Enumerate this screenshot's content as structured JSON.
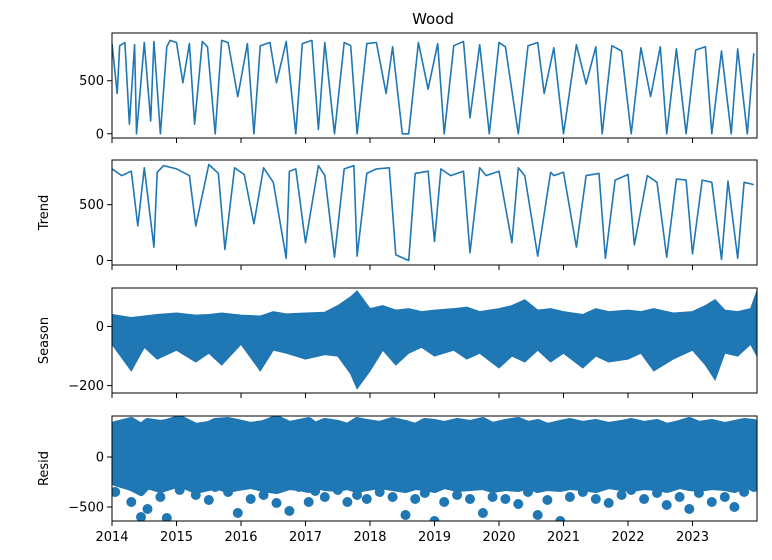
{
  "figure": {
    "title": "Wood",
    "series_color": "#1f77b4"
  },
  "chart_data": [
    {
      "type": "line",
      "title": "Wood",
      "ylabel": "",
      "xlim": [
        2014,
        2024
      ],
      "ylim": [
        -40,
        950
      ],
      "yticks": [
        0,
        500
      ],
      "grid": false,
      "series": [
        {
          "x": [
            2014.0,
            2014.08,
            2014.12,
            2014.2,
            2014.27,
            2014.35,
            2014.38,
            2014.5,
            2014.6,
            2014.65,
            2014.75,
            2014.85,
            2014.9,
            2015.0,
            2015.1,
            2015.2,
            2015.28,
            2015.4,
            2015.48,
            2015.6,
            2015.7,
            2015.8,
            2015.95,
            2016.1,
            2016.2,
            2016.3,
            2016.45,
            2016.55,
            2016.7,
            2016.85,
            2016.95,
            2017.1,
            2017.2,
            2017.3,
            2017.45,
            2017.6,
            2017.7,
            2017.8,
            2017.95,
            2018.1,
            2018.25,
            2018.35,
            2018.5,
            2018.6,
            2018.75,
            2018.9,
            2019.05,
            2019.15,
            2019.3,
            2019.45,
            2019.55,
            2019.7,
            2019.85,
            2020.0,
            2020.1,
            2020.3,
            2020.45,
            2020.6,
            2020.7,
            2020.85,
            2021.0,
            2021.2,
            2021.35,
            2021.5,
            2021.6,
            2021.75,
            2021.9,
            2022.05,
            2022.2,
            2022.35,
            2022.5,
            2022.6,
            2022.75,
            2022.9,
            2023.05,
            2023.2,
            2023.3,
            2023.45,
            2023.6,
            2023.7,
            2023.85,
            2023.95
          ],
          "y": [
            850,
            380,
            830,
            860,
            90,
            840,
            0,
            860,
            120,
            870,
            0,
            820,
            880,
            860,
            480,
            850,
            90,
            870,
            820,
            0,
            880,
            860,
            350,
            850,
            0,
            830,
            860,
            480,
            870,
            0,
            850,
            880,
            40,
            860,
            0,
            860,
            830,
            0,
            850,
            860,
            380,
            820,
            0,
            0,
            860,
            420,
            850,
            0,
            830,
            870,
            150,
            840,
            0,
            860,
            820,
            0,
            830,
            860,
            380,
            810,
            0,
            840,
            470,
            820,
            0,
            830,
            780,
            0,
            810,
            350,
            820,
            0,
            800,
            0,
            790,
            820,
            0,
            780,
            0,
            800,
            0,
            760
          ]
        }
      ]
    },
    {
      "type": "line",
      "title": "",
      "ylabel": "Trend",
      "xlim": [
        2014,
        2024
      ],
      "ylim": [
        -40,
        900
      ],
      "yticks": [
        0,
        500
      ],
      "grid": false,
      "series": [
        {
          "x": [
            2014.0,
            2014.15,
            2014.3,
            2014.4,
            2014.5,
            2014.65,
            2014.7,
            2014.8,
            2015.0,
            2015.2,
            2015.3,
            2015.5,
            2015.65,
            2015.75,
            2015.9,
            2016.05,
            2016.2,
            2016.35,
            2016.5,
            2016.7,
            2016.75,
            2016.85,
            2017.0,
            2017.2,
            2017.3,
            2017.45,
            2017.6,
            2017.75,
            2017.8,
            2017.95,
            2018.1,
            2018.3,
            2018.4,
            2018.6,
            2018.7,
            2018.9,
            2019.0,
            2019.1,
            2019.25,
            2019.45,
            2019.55,
            2019.7,
            2019.8,
            2020.0,
            2020.2,
            2020.3,
            2020.4,
            2020.6,
            2020.8,
            2020.85,
            2021.0,
            2021.2,
            2021.35,
            2021.55,
            2021.65,
            2021.8,
            2022.0,
            2022.1,
            2022.3,
            2022.45,
            2022.6,
            2022.75,
            2022.9,
            2023.0,
            2023.15,
            2023.3,
            2023.45,
            2023.55,
            2023.7,
            2023.8,
            2023.95
          ],
          "y": [
            820,
            760,
            800,
            310,
            830,
            120,
            790,
            850,
            820,
            760,
            310,
            860,
            780,
            100,
            830,
            770,
            330,
            830,
            700,
            20,
            800,
            820,
            160,
            850,
            760,
            30,
            820,
            850,
            40,
            780,
            820,
            830,
            50,
            0,
            780,
            800,
            170,
            820,
            760,
            800,
            70,
            830,
            760,
            800,
            160,
            830,
            760,
            40,
            790,
            760,
            790,
            120,
            760,
            780,
            20,
            720,
            770,
            140,
            760,
            700,
            30,
            730,
            720,
            60,
            720,
            700,
            10,
            710,
            20,
            700,
            680
          ]
        }
      ]
    },
    {
      "type": "area",
      "title": "",
      "ylabel": "Season",
      "xlim": [
        2014,
        2024
      ],
      "ylim": [
        -225,
        130
      ],
      "yticks": [
        -200,
        0
      ],
      "grid": false,
      "series": [
        {
          "x": [
            2014.0,
            2014.3,
            2014.5,
            2014.7,
            2015.0,
            2015.3,
            2015.5,
            2015.7,
            2016.0,
            2016.3,
            2016.5,
            2016.7,
            2017.0,
            2017.3,
            2017.5,
            2017.7,
            2017.8,
            2018.0,
            2018.2,
            2018.4,
            2018.6,
            2018.8,
            2019.0,
            2019.3,
            2019.5,
            2019.7,
            2020.0,
            2020.2,
            2020.4,
            2020.6,
            2020.8,
            2021.0,
            2021.3,
            2021.5,
            2021.7,
            2022.0,
            2022.2,
            2022.4,
            2022.7,
            2023.0,
            2023.2,
            2023.35,
            2023.5,
            2023.7,
            2023.9,
            2024.0
          ],
          "upper": [
            40,
            30,
            35,
            40,
            45,
            38,
            40,
            45,
            38,
            35,
            50,
            42,
            45,
            48,
            70,
            100,
            120,
            60,
            70,
            55,
            60,
            50,
            55,
            60,
            65,
            50,
            60,
            70,
            90,
            55,
            60,
            50,
            40,
            60,
            50,
            55,
            50,
            60,
            45,
            50,
            70,
            90,
            55,
            50,
            60,
            120
          ],
          "lower": [
            -60,
            -150,
            -70,
            -110,
            -80,
            -120,
            -90,
            -130,
            -60,
            -150,
            -80,
            -90,
            -110,
            -95,
            -100,
            -160,
            -210,
            -150,
            -80,
            -130,
            -90,
            -70,
            -100,
            -80,
            -110,
            -90,
            -140,
            -100,
            -120,
            -80,
            -120,
            -90,
            -140,
            -100,
            -120,
            -110,
            -90,
            -150,
            -110,
            -80,
            -130,
            -180,
            -90,
            -100,
            -60,
            -100
          ]
        }
      ]
    },
    {
      "type": "scatter",
      "title": "",
      "ylabel": "Resid",
      "xlim": [
        2014,
        2024
      ],
      "ylim": [
        -640,
        410
      ],
      "yticks": [
        -500,
        0
      ],
      "grid": false,
      "series": [
        {
          "x": [
            2014.05,
            2014.3,
            2014.45,
            2014.55,
            2014.75,
            2014.85,
            2015.05,
            2015.3,
            2015.5,
            2015.6,
            2015.8,
            2015.95,
            2016.15,
            2016.35,
            2016.55,
            2016.75,
            2016.9,
            2017.05,
            2017.15,
            2017.3,
            2017.5,
            2017.65,
            2017.8,
            2017.95,
            2018.15,
            2018.35,
            2018.55,
            2018.7,
            2018.85,
            2019.0,
            2019.15,
            2019.35,
            2019.55,
            2019.75,
            2019.9,
            2020.1,
            2020.3,
            2020.45,
            2020.6,
            2020.75,
            2020.95,
            2021.1,
            2021.3,
            2021.5,
            2021.7,
            2021.9,
            2022.05,
            2022.25,
            2022.45,
            2022.6,
            2022.8,
            2022.95,
            2023.1,
            2023.3,
            2023.5,
            2023.65,
            2023.8,
            2023.95
          ],
          "y": [
            -350,
            -450,
            -600,
            -520,
            -400,
            -610,
            -330,
            -380,
            -430,
            -300,
            -350,
            -560,
            -420,
            -380,
            -460,
            -540,
            -300,
            -450,
            -340,
            -400,
            -330,
            -450,
            -380,
            -420,
            -350,
            -400,
            -580,
            -420,
            -360,
            -640,
            -450,
            -380,
            -420,
            -560,
            -400,
            -420,
            -470,
            -350,
            -580,
            -430,
            -640,
            -400,
            -350,
            -420,
            -460,
            -380,
            -330,
            -420,
            -360,
            -480,
            -400,
            -520,
            -360,
            -450,
            -400,
            -500,
            -350,
            -300
          ],
          "band_upper": [
            320,
            360,
            300,
            350,
            330,
            340,
            380,
            300,
            320,
            350,
            360,
            340,
            310,
            330,
            380,
            320,
            340,
            360,
            310,
            350,
            330,
            300,
            360,
            340,
            320,
            360,
            330,
            300,
            350,
            340,
            320,
            350,
            330,
            360,
            310,
            340,
            360,
            320,
            340,
            300,
            330,
            350,
            320,
            340,
            310,
            330,
            350,
            320,
            340,
            300,
            330,
            360,
            320,
            340,
            310,
            330,
            350,
            340
          ],
          "band_lower": [
            -250,
            -300,
            -350,
            -280,
            -320,
            -300,
            -260,
            -330,
            -300,
            -280,
            -320,
            -300,
            -280,
            -310,
            -330,
            -290,
            -300,
            -320,
            -280,
            -300,
            -310,
            -290,
            -320,
            -300,
            -280,
            -300,
            -320,
            -290,
            -300,
            -320,
            -280,
            -310,
            -300,
            -290,
            -320,
            -300,
            -310,
            -280,
            -320,
            -300,
            -310,
            -290,
            -300,
            -320,
            -280,
            -300,
            -310,
            -290,
            -300,
            -320,
            -280,
            -300,
            -310,
            -290,
            -300,
            -320,
            -280,
            -300
          ]
        }
      ]
    }
  ],
  "x_axis": {
    "ticks": [
      "2014",
      "2015",
      "2016",
      "2017",
      "2018",
      "2019",
      "2020",
      "2021",
      "2022",
      "2023"
    ]
  }
}
